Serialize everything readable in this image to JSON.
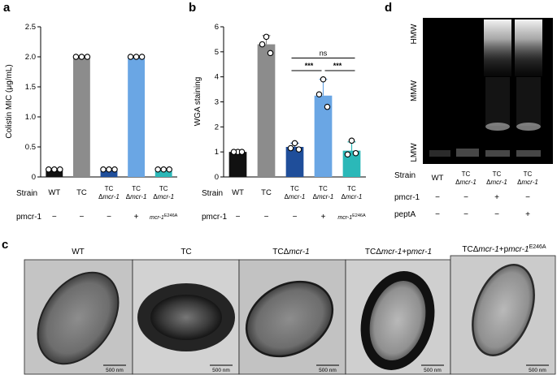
{
  "panel_labels": {
    "a": "a",
    "b": "b",
    "c": "c",
    "d": "d"
  },
  "colors": {
    "wt": "#111111",
    "tc": "#8c8c8c",
    "dmcr": "#1f4e9a",
    "mcr": "#6aa6e4",
    "e246a": "#2bb8b8",
    "gel_bg": "#000000",
    "tem_bg": "#bdbdbd"
  },
  "row_labels": {
    "strain": "Strain",
    "pmcr1": "pmcr-1",
    "pepta": "peptA"
  },
  "chart_data": [
    {
      "type": "bar",
      "panel": "a",
      "title": "",
      "ylabel": "Colistin MIC (μg/mL)",
      "ylim": [
        0,
        2.5
      ],
      "yticks": [
        "0",
        "0.5",
        "1.0",
        "1.5",
        "2.0",
        "2.5"
      ],
      "categories": [
        "WT",
        "TC",
        "TC Δmcr-1",
        "TC Δmcr-1",
        "TC Δmcr-1"
      ],
      "values": [
        0.125,
        2.0,
        0.125,
        2.0,
        0.125
      ],
      "points": [
        [
          0.125,
          0.125,
          0.125
        ],
        [
          2.0,
          2.0,
          2.0
        ],
        [
          0.125,
          0.125,
          0.125
        ],
        [
          2.0,
          2.0,
          2.0
        ],
        [
          0.125,
          0.125,
          0.125
        ]
      ],
      "pmcr1_row": [
        "−",
        "−",
        "−",
        "+",
        "mcr-1E246A"
      ]
    },
    {
      "type": "bar",
      "panel": "b",
      "title": "",
      "ylabel": "WGA staining",
      "ylim": [
        0,
        6
      ],
      "yticks": [
        "0",
        "1",
        "2",
        "3",
        "4",
        "5",
        "6"
      ],
      "categories": [
        "WT",
        "TC",
        "TC Δmcr-1",
        "TC Δmcr-1",
        "TC Δmcr-1"
      ],
      "values": [
        1.0,
        5.3,
        1.2,
        3.25,
        1.05
      ],
      "errors": [
        0.0,
        0.35,
        0.15,
        0.65,
        0.35
      ],
      "points": [
        [
          1.0,
          1.0,
          1.0
        ],
        [
          5.6,
          5.3,
          4.95
        ],
        [
          1.35,
          1.15,
          1.1
        ],
        [
          3.9,
          3.3,
          2.8
        ],
        [
          1.45,
          0.9,
          0.95
        ]
      ],
      "pmcr1_row": [
        "−",
        "−",
        "−",
        "+",
        "mcr-1E246A"
      ],
      "significance": [
        {
          "from": 2,
          "to": 4,
          "label": "ns"
        },
        {
          "from": 2,
          "to": 3,
          "label": "***"
        },
        {
          "from": 3,
          "to": 4,
          "label": "***"
        }
      ]
    }
  ],
  "gel": {
    "markers": [
      "HMW",
      "MMW",
      "LMW"
    ],
    "strain_row": [
      "WT",
      "TC Δmcr-1",
      "TC Δmcr-1",
      "TC Δmcr-1"
    ],
    "pmcr1_row": [
      "−",
      "−",
      "+",
      "−"
    ],
    "pepta_row": [
      "−",
      "−",
      "−",
      "+"
    ]
  },
  "tem": {
    "titles": [
      "WT",
      "TC",
      "TCΔmcr-1",
      "TCΔmcr-1+pmcr-1",
      "TCΔmcr-1+pmcr-1E246A"
    ],
    "scale_bar": "500 nm"
  }
}
